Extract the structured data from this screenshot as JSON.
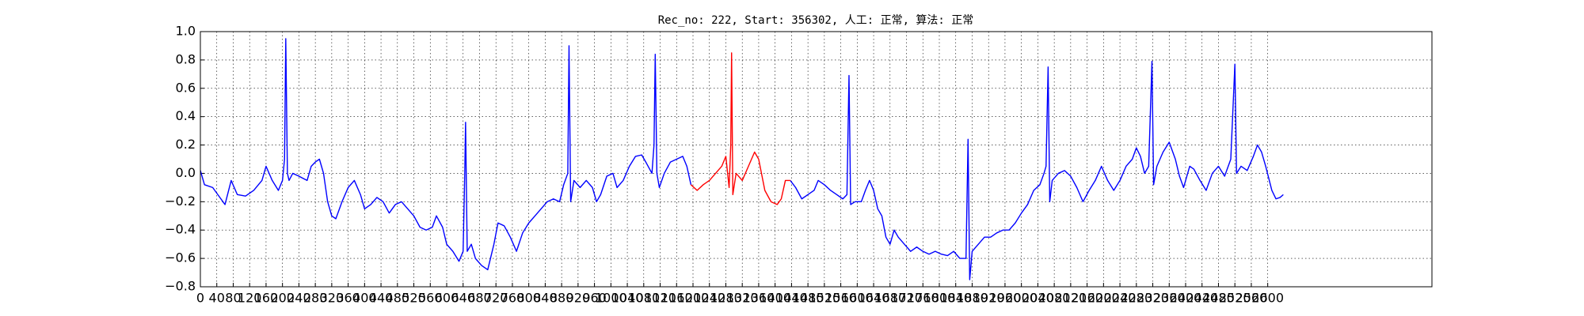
{
  "chart_data": {
    "type": "line",
    "title": "Rec_no: 222, Start: 356302, 人工: 正常, 算法: 正常",
    "xlim": [
      0,
      3000
    ],
    "xticks": [
      0,
      40,
      80,
      120,
      160,
      200,
      240,
      280,
      320,
      360,
      400,
      440,
      480,
      520,
      560,
      600,
      640,
      680,
      720,
      760,
      800,
      840,
      880,
      920,
      960,
      1000,
      1040,
      1080,
      1120,
      1160,
      1200,
      1240,
      1280,
      1320,
      1360,
      1400,
      1440,
      1480,
      1520,
      1560,
      1600,
      1640,
      1680,
      1720,
      1760,
      1800,
      1840,
      1880,
      1920,
      1960,
      2000,
      2040,
      2080,
      2120,
      2160,
      2200,
      2240,
      2280,
      2320,
      2360,
      2400,
      2440,
      2480,
      2520,
      2560,
      2600
    ],
    "ylim": [
      -0.8,
      1.0
    ],
    "yticks": [
      {
        "value": -0.8,
        "label": "−0.8"
      },
      {
        "value": -0.6,
        "label": "−0.6"
      },
      {
        "value": -0.4,
        "label": "−0.4"
      },
      {
        "value": -0.2,
        "label": "−0.2"
      },
      {
        "value": 0.0,
        "label": "0.0"
      },
      0.2,
      0.4,
      0.6,
      0.8,
      {
        "value": 1.0,
        "label": "1.0"
      }
    ],
    "grid": true,
    "series": [
      {
        "color": "#0000ff",
        "x": [
          0,
          10,
          30,
          50,
          60,
          75,
          90,
          110,
          130,
          150,
          160,
          175,
          190,
          200,
          205,
          208,
          212,
          216,
          225,
          240,
          260,
          270,
          280,
          290,
          300,
          310,
          320,
          330,
          345,
          360,
          375,
          390,
          400,
          415,
          430,
          445,
          460,
          475,
          490,
          505,
          520,
          535,
          550,
          565,
          575,
          590,
          600,
          615,
          630,
          640,
          644,
          646,
          650,
          660,
          670,
          685,
          700,
          715,
          725,
          740,
          755,
          770,
          785,
          800,
          815,
          830,
          845,
          860,
          875,
          885,
          895,
          898,
          902,
          910,
          925,
          940,
          955,
          965,
          975,
          990,
          1005,
          1015,
          1030,
          1045,
          1060,
          1075,
          1085,
          1100,
          1105,
          1108,
          1112,
          1118,
          1130,
          1145,
          1160,
          1175,
          1185,
          1195,
          1300,
          1437,
          1450,
          1465,
          1480,
          1495,
          1505,
          1520,
          1535,
          1550,
          1565,
          1575,
          1580,
          1584,
          1595,
          1610,
          1620,
          1630,
          1640,
          1650,
          1660,
          1670,
          1680,
          1690,
          1700,
          1715,
          1730,
          1745,
          1760,
          1775,
          1790,
          1805,
          1820,
          1835,
          1850,
          1865,
          1870,
          1874,
          1880,
          1895,
          1910,
          1925,
          1940,
          1955,
          1970,
          1985,
          2000,
          2015,
          2030,
          2045,
          2055,
          2060,
          2065,
          2069,
          2075,
          2090,
          2105,
          2120,
          2135,
          2150,
          2165,
          2180,
          2195,
          2210,
          2225,
          2240,
          2255,
          2270,
          2280,
          2290,
          2300,
          2310,
          2318,
          2322,
          2330,
          2345,
          2360,
          2375,
          2385,
          2395,
          2410,
          2420,
          2435,
          2450,
          2465,
          2480,
          2495,
          2510,
          2520,
          2524,
          2535,
          2550,
          2565,
          2575,
          2585,
          2595,
          2610,
          2620,
          2630,
          2638
        ],
        "values": [
          0.02,
          -0.08,
          -0.1,
          -0.18,
          -0.22,
          -0.05,
          -0.15,
          -0.16,
          -0.12,
          -0.05,
          0.05,
          -0.05,
          -0.12,
          -0.05,
          0.1,
          0.95,
          0.0,
          -0.05,
          0.0,
          -0.02,
          -0.05,
          0.05,
          0.08,
          0.1,
          0.0,
          -0.2,
          -0.3,
          -0.32,
          -0.2,
          -0.1,
          -0.05,
          -0.15,
          -0.25,
          -0.22,
          -0.17,
          -0.2,
          -0.28,
          -0.22,
          -0.2,
          -0.25,
          -0.3,
          -0.38,
          -0.4,
          -0.38,
          -0.3,
          -0.38,
          -0.5,
          -0.55,
          -0.62,
          -0.55,
          0.0,
          0.36,
          -0.55,
          -0.5,
          -0.6,
          -0.65,
          -0.68,
          -0.5,
          -0.35,
          -0.37,
          -0.45,
          -0.55,
          -0.42,
          -0.35,
          -0.3,
          -0.25,
          -0.2,
          -0.18,
          -0.2,
          -0.08,
          0.0,
          0.9,
          -0.2,
          -0.05,
          -0.1,
          -0.05,
          -0.1,
          -0.2,
          -0.15,
          -0.02,
          0.0,
          -0.1,
          -0.05,
          0.05,
          0.12,
          0.13,
          0.08,
          0.0,
          0.2,
          0.84,
          0.0,
          -0.1,
          0.0,
          0.08,
          0.1,
          0.12,
          0.05,
          -0.08,
          null,
          -0.05,
          -0.1,
          -0.18,
          -0.15,
          -0.12,
          -0.05,
          -0.08,
          -0.12,
          -0.15,
          -0.18,
          -0.15,
          0.69,
          -0.22,
          -0.2,
          -0.2,
          -0.12,
          -0.05,
          -0.12,
          -0.25,
          -0.3,
          -0.45,
          -0.5,
          -0.4,
          -0.45,
          -0.5,
          -0.55,
          -0.52,
          -0.55,
          -0.57,
          -0.55,
          -0.57,
          -0.58,
          -0.55,
          -0.6,
          -0.6,
          0.24,
          -0.75,
          -0.55,
          -0.5,
          -0.45,
          -0.45,
          -0.42,
          -0.4,
          -0.4,
          -0.35,
          -0.28,
          -0.22,
          -0.12,
          -0.08,
          0.0,
          0.05,
          0.75,
          -0.2,
          -0.05,
          0.0,
          0.02,
          -0.02,
          -0.1,
          -0.2,
          -0.12,
          -0.05,
          0.05,
          -0.05,
          -0.12,
          -0.05,
          0.05,
          0.1,
          0.18,
          0.12,
          0.0,
          0.05,
          0.79,
          -0.08,
          0.05,
          0.15,
          0.22,
          0.1,
          -0.02,
          -0.1,
          0.05,
          0.03,
          -0.05,
          -0.12,
          0.0,
          0.05,
          -0.02,
          0.1,
          0.77,
          0.0,
          0.05,
          0.02,
          0.12,
          0.2,
          0.15,
          0.05,
          -0.12,
          -0.18,
          -0.17,
          -0.15
        ]
      },
      {
        "color": "#ff0000",
        "x": [
          1195,
          1210,
          1225,
          1240,
          1255,
          1270,
          1280,
          1288,
          1292,
          1294,
          1297,
          1305,
          1320,
          1335,
          1350,
          1360,
          1375,
          1390,
          1405,
          1415,
          1425,
          1437
        ],
        "values": [
          -0.08,
          -0.12,
          -0.08,
          -0.05,
          0.0,
          0.05,
          0.12,
          -0.1,
          0.2,
          0.85,
          -0.15,
          0.0,
          -0.05,
          0.05,
          0.15,
          0.1,
          -0.12,
          -0.2,
          -0.22,
          -0.18,
          -0.05,
          -0.05
        ]
      }
    ]
  }
}
